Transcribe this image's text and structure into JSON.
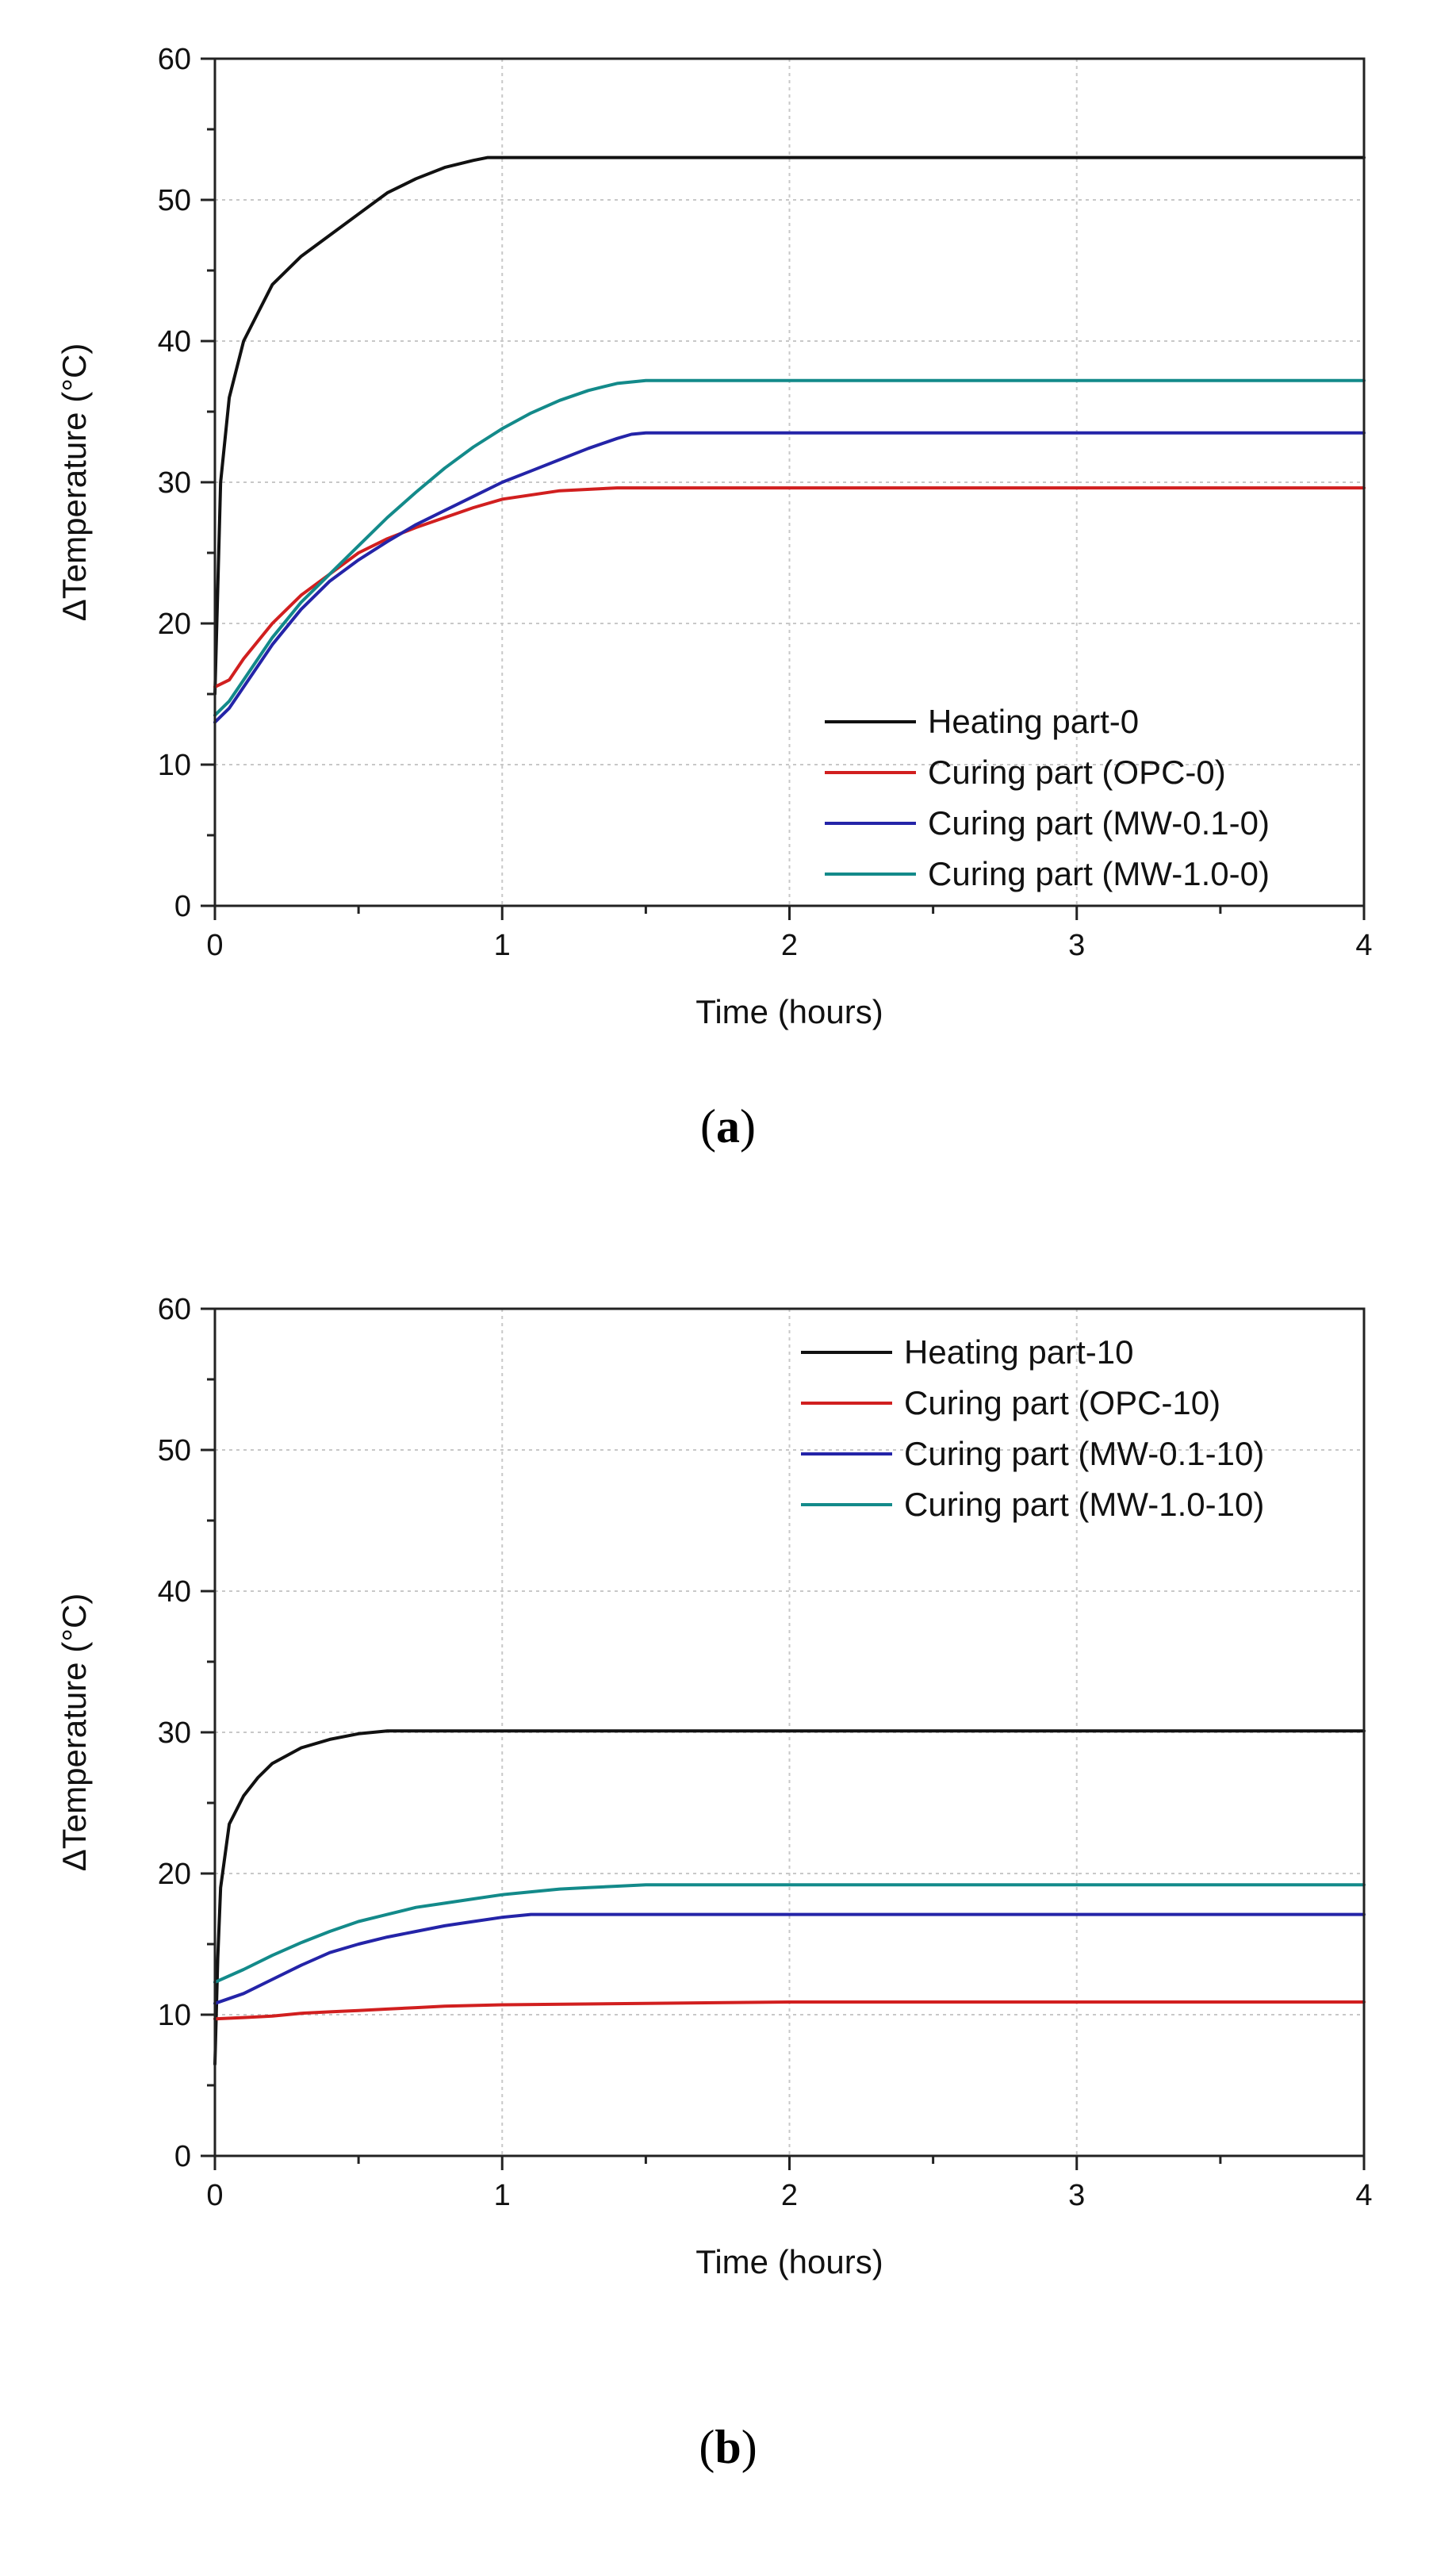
{
  "chart_data": [
    {
      "type": "line",
      "panel_label": "(a)",
      "caption_open": "(",
      "caption_letter": "a",
      "caption_close": ")",
      "title": "",
      "xlabel": "Time (hours)",
      "ylabel": "ΔTemperature (°C)",
      "xlim": [
        0,
        4
      ],
      "ylim": [
        0,
        60
      ],
      "xticks": [
        0,
        1,
        2,
        3,
        4
      ],
      "yticks": [
        0,
        10,
        20,
        30,
        40,
        50,
        60
      ],
      "grid": true,
      "legend_position": "bottom-right",
      "series": [
        {
          "name": "Heating part-0",
          "color": "#111111",
          "x": [
            0,
            0.02,
            0.05,
            0.1,
            0.15,
            0.2,
            0.3,
            0.4,
            0.5,
            0.6,
            0.7,
            0.8,
            0.9,
            0.95,
            1.0,
            1.5,
            2.0,
            2.5,
            3.0,
            3.5,
            4.0
          ],
          "y": [
            15,
            30,
            36,
            40,
            42,
            44,
            46,
            47.5,
            49,
            50.5,
            51.5,
            52.3,
            52.8,
            53,
            53,
            53,
            53,
            53,
            53,
            53,
            53
          ]
        },
        {
          "name": "Curing part (OPC-0)",
          "color": "#d11f1f",
          "x": [
            0,
            0.05,
            0.1,
            0.2,
            0.3,
            0.4,
            0.5,
            0.6,
            0.7,
            0.8,
            0.9,
            1.0,
            1.2,
            1.4,
            1.5,
            2.0,
            2.5,
            3.0,
            3.5,
            4.0
          ],
          "y": [
            15.5,
            16,
            17.5,
            20,
            22,
            23.5,
            25,
            26,
            26.8,
            27.5,
            28.2,
            28.8,
            29.4,
            29.6,
            29.6,
            29.6,
            29.6,
            29.6,
            29.6,
            29.6
          ]
        },
        {
          "name": "Curing part (MW-0.1-0)",
          "color": "#2424a8",
          "x": [
            0,
            0.05,
            0.1,
            0.2,
            0.3,
            0.4,
            0.5,
            0.6,
            0.7,
            0.8,
            0.9,
            1.0,
            1.1,
            1.2,
            1.3,
            1.4,
            1.45,
            1.5,
            2.0,
            2.5,
            3.0,
            3.5,
            4.0
          ],
          "y": [
            13,
            14,
            15.5,
            18.5,
            21,
            23,
            24.5,
            25.8,
            27,
            28,
            29,
            30,
            30.8,
            31.6,
            32.4,
            33.1,
            33.4,
            33.5,
            33.5,
            33.5,
            33.5,
            33.5,
            33.5
          ]
        },
        {
          "name": "Curing part (MW-1.0-0)",
          "color": "#138a8a",
          "x": [
            0,
            0.05,
            0.1,
            0.2,
            0.3,
            0.4,
            0.5,
            0.6,
            0.7,
            0.8,
            0.9,
            1.0,
            1.1,
            1.2,
            1.3,
            1.4,
            1.5,
            2.0,
            2.5,
            3.0,
            3.5,
            4.0
          ],
          "y": [
            13.5,
            14.5,
            16,
            19,
            21.5,
            23.5,
            25.5,
            27.5,
            29.3,
            31,
            32.5,
            33.8,
            34.9,
            35.8,
            36.5,
            37,
            37.2,
            37.2,
            37.2,
            37.2,
            37.2,
            37.2
          ]
        }
      ]
    },
    {
      "type": "line",
      "panel_label": "(b)",
      "caption_open": "(",
      "caption_letter": "b",
      "caption_close": ")",
      "title": "",
      "xlabel": "Time (hours)",
      "ylabel": "ΔTemperature (°C)",
      "xlim": [
        0,
        4
      ],
      "ylim": [
        0,
        60
      ],
      "xticks": [
        0,
        1,
        2,
        3,
        4
      ],
      "yticks": [
        0,
        10,
        20,
        30,
        40,
        50,
        60
      ],
      "grid": true,
      "legend_position": "top-right",
      "series": [
        {
          "name": "Heating part-10",
          "color": "#111111",
          "x": [
            0,
            0.01,
            0.02,
            0.05,
            0.1,
            0.15,
            0.2,
            0.3,
            0.4,
            0.5,
            0.6,
            0.7,
            1.0,
            1.5,
            2.0,
            2.5,
            3.0,
            3.5,
            4.0
          ],
          "y": [
            6.5,
            14,
            19,
            23.5,
            25.5,
            26.8,
            27.8,
            28.9,
            29.5,
            29.9,
            30.1,
            30.1,
            30.1,
            30.1,
            30.1,
            30.1,
            30.1,
            30.1,
            30.1
          ]
        },
        {
          "name": "Curing part (OPC-10)",
          "color": "#d11f1f",
          "x": [
            0,
            0.1,
            0.2,
            0.3,
            0.4,
            0.5,
            0.6,
            0.7,
            0.8,
            1.0,
            1.5,
            2.0,
            2.5,
            3.0,
            3.5,
            4.0
          ],
          "y": [
            9.7,
            9.8,
            9.9,
            10.1,
            10.2,
            10.3,
            10.4,
            10.5,
            10.6,
            10.7,
            10.8,
            10.9,
            10.9,
            10.9,
            10.9,
            10.9
          ]
        },
        {
          "name": "Curing part (MW-0.1-10)",
          "color": "#2424a8",
          "x": [
            0,
            0.1,
            0.2,
            0.3,
            0.4,
            0.5,
            0.6,
            0.7,
            0.8,
            0.9,
            1.0,
            1.1,
            1.2,
            1.5,
            2.0,
            2.5,
            3.0,
            3.5,
            4.0
          ],
          "y": [
            10.8,
            11.5,
            12.5,
            13.5,
            14.4,
            15,
            15.5,
            15.9,
            16.3,
            16.6,
            16.9,
            17.1,
            17.1,
            17.1,
            17.1,
            17.1,
            17.1,
            17.1,
            17.1
          ]
        },
        {
          "name": "Curing part (MW-1.0-10)",
          "color": "#138a8a",
          "x": [
            0,
            0.1,
            0.2,
            0.3,
            0.4,
            0.5,
            0.6,
            0.7,
            0.8,
            0.9,
            1.0,
            1.1,
            1.2,
            1.3,
            1.4,
            1.5,
            2.0,
            2.5,
            3.0,
            3.5,
            4.0
          ],
          "y": [
            12.3,
            13.2,
            14.2,
            15.1,
            15.9,
            16.6,
            17.1,
            17.6,
            17.9,
            18.2,
            18.5,
            18.7,
            18.9,
            19.0,
            19.1,
            19.2,
            19.2,
            19.2,
            19.2,
            19.2,
            19.2
          ]
        }
      ]
    }
  ]
}
